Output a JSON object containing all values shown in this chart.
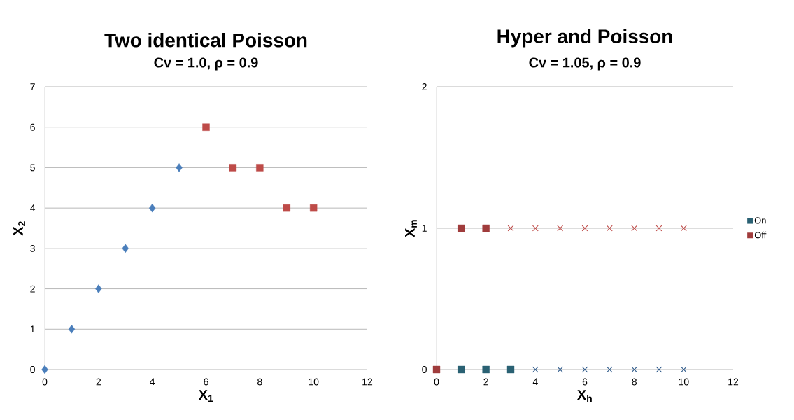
{
  "chart_data": [
    {
      "type": "scatter",
      "title": "Two identical Poisson",
      "subtitle": "Cv = 1.0, ρ = 0.9",
      "xlabel": "X$_{1}$",
      "ylabel": "X$_{2}$",
      "xlim": [
        0,
        12
      ],
      "ylim": [
        0,
        7
      ],
      "xticks": [
        0,
        2,
        4,
        6,
        8,
        10,
        12
      ],
      "yticks": [
        0,
        1,
        2,
        3,
        4,
        5,
        6,
        7
      ],
      "grid": "y",
      "series": [
        {
          "x": [
            0,
            1,
            2,
            3,
            4,
            5
          ],
          "values": [
            0,
            1,
            2,
            3,
            4,
            5
          ],
          "color": "#4a7ebb",
          "marker": "diamond"
        },
        {
          "x": [
            6,
            7,
            8,
            9,
            10
          ],
          "values": [
            6,
            5,
            5,
            4,
            4
          ],
          "color": "#be4b48",
          "marker": "square"
        }
      ]
    },
    {
      "type": "scatter",
      "title": "Hyper and Poisson",
      "subtitle": "Cv = 1.05, ρ = 0.9",
      "xlabel": "X$_{h}$",
      "ylabel": "X$_{m}$",
      "xlim": [
        0,
        12
      ],
      "ylim": [
        0,
        2
      ],
      "xticks": [
        0,
        2,
        4,
        6,
        8,
        10,
        12
      ],
      "yticks": [
        0,
        1,
        2
      ],
      "grid": "y",
      "legend": "right",
      "series": [
        {
          "name": "On",
          "x": [
            1,
            2,
            3
          ],
          "values": [
            0,
            0,
            0
          ],
          "color": "#2a6173",
          "marker": "square"
        },
        {
          "name": "Off",
          "x": [
            0,
            1,
            2
          ],
          "values": [
            0,
            1,
            1
          ],
          "color": "#a03c3c",
          "marker": "square"
        },
        {
          "x": [
            4,
            5,
            6,
            7,
            8,
            9,
            10
          ],
          "values": [
            0,
            0,
            0,
            0,
            0,
            0,
            0
          ],
          "color": "#2f5a8a",
          "marker": "cross"
        },
        {
          "x": [
            3,
            4,
            5,
            6,
            7,
            8,
            9,
            10
          ],
          "values": [
            1,
            1,
            1,
            1,
            1,
            1,
            1,
            1
          ],
          "color": "#c0504d",
          "marker": "cross"
        }
      ]
    }
  ]
}
